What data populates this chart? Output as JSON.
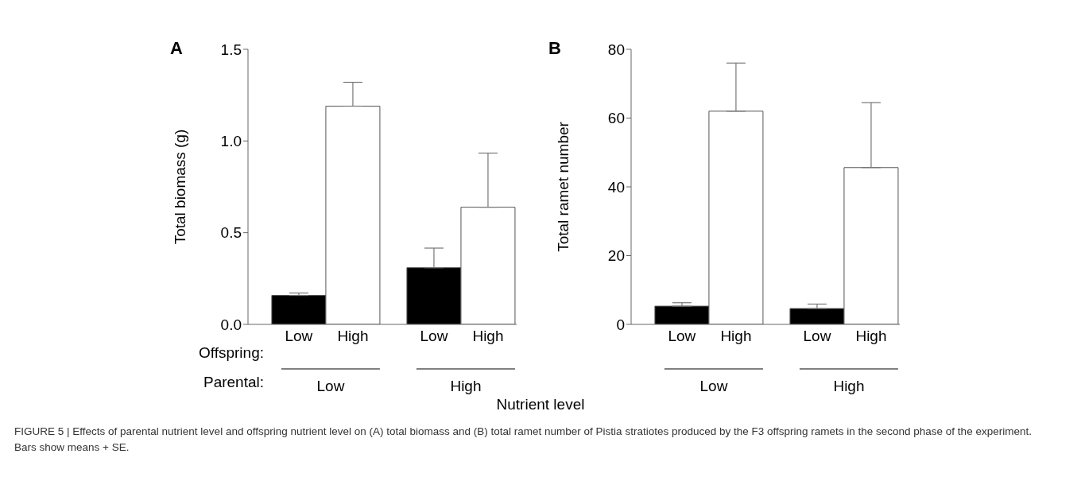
{
  "chart_data": [
    {
      "type": "bar",
      "title": "A",
      "ylabel": "Total biomass (g)",
      "xlabel": "Nutrient level",
      "categories": [
        "Low",
        "High",
        "Low",
        "High"
      ],
      "values": [
        0.158,
        1.19,
        0.309,
        0.639
      ],
      "errors": [
        [
          0.158,
          0.171
        ],
        [
          1.19,
          1.32
        ],
        [
          0.309,
          0.416
        ],
        [
          0.639,
          0.934
        ]
      ],
      "colors": [
        "#000000",
        "#ffffff",
        "#000000",
        "#ffffff"
      ],
      "ylim": [
        0,
        1.5
      ],
      "yticks": [
        {
          "value": 0,
          "label": "0.0"
        },
        0.5,
        {
          "value": 1,
          "label": "1.0"
        },
        1.5
      ],
      "annotations": [
        "Offspring:",
        "Parental:",
        "Low",
        "High"
      ]
    },
    {
      "type": "bar",
      "title": "B",
      "ylabel": "Total ramet number",
      "categories": [
        "Low",
        "High",
        "Low",
        "High"
      ],
      "values": [
        5.3,
        62,
        4.6,
        45.6
      ],
      "errors": [
        [
          5.3,
          6.3
        ],
        [
          62,
          76
        ],
        [
          4.6,
          5.9
        ],
        [
          45.6,
          64.5
        ]
      ],
      "colors": [
        "#000000",
        "#ffffff",
        "#000000",
        "#ffffff"
      ],
      "ylim": [
        0,
        80
      ],
      "yticks": [
        0,
        20,
        40,
        60,
        80
      ],
      "annotations": [
        "Low",
        "High",
        "FIGURE 5 | Effects of parental nutrient level and offspring nutrient level on (A) total biomass and (B) total ramet number of Pistia stratiotes produced by the F3 offspring ramets in the second phase of the experiment. Bars show means + SE."
      ]
    }
  ]
}
